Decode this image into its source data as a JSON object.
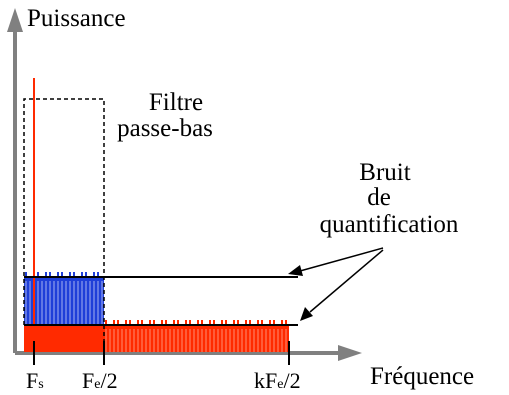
{
  "labels": {
    "y_axis": "Puissance",
    "x_axis": "Fréquence",
    "filter_line1": "Filtre",
    "filter_line2": "passe-bas",
    "noise_line1": "Bruit",
    "noise_line2": "de",
    "noise_line3": "quantification",
    "tick_fs_main": "F",
    "tick_fs_sub": "s",
    "tick_fe2_main": "F",
    "tick_fe2_sub": "e",
    "tick_fe2_tail": "/2",
    "tick_kfe2_main": "kF",
    "tick_kfe2_sub": "e",
    "tick_kfe2_tail": "/2"
  },
  "colors": {
    "axis": "#808080",
    "signal": "#ff2a00",
    "noise_inband": "#1f3fd8",
    "noise_spread": "#ff2a00",
    "filter": "#000000",
    "line": "#000000"
  }
}
